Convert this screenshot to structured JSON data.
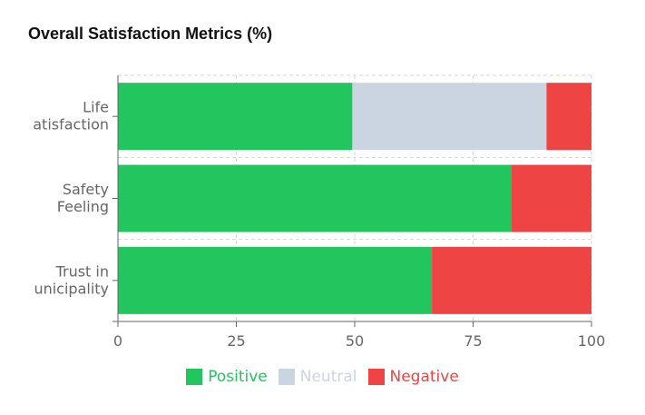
{
  "chart_data": {
    "type": "bar",
    "orientation": "horizontal",
    "stacked": true,
    "title": "Overall Satisfaction Metrics (%)",
    "categories": [
      [
        "Life",
        "atisfaction"
      ],
      [
        "Safety",
        "Feeling"
      ],
      [
        "Trust in",
        "unicipality"
      ]
    ],
    "series": [
      {
        "name": "Positive",
        "color": "#22c55e",
        "values": [
          49.5,
          83,
          66.3
        ]
      },
      {
        "name": "Neutral",
        "color": "#cbd5e1",
        "values": [
          41,
          0,
          0
        ]
      },
      {
        "name": "Negative",
        "color": "#ef4444",
        "values": [
          9.5,
          17,
          33.7
        ]
      }
    ],
    "xlim": [
      0,
      100
    ],
    "xticks": [
      0,
      25,
      50,
      75,
      100
    ],
    "grid": true,
    "legend_position": "bottom"
  }
}
